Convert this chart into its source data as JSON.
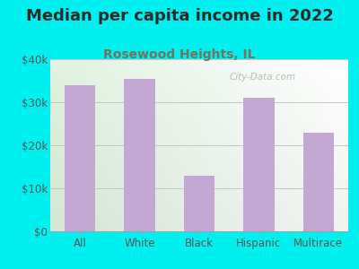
{
  "title": "Median per capita income in 2022",
  "subtitle": "Rosewood Heights, IL",
  "categories": [
    "All",
    "White",
    "Black",
    "Hispanic",
    "Multirace"
  ],
  "values": [
    34000,
    35500,
    13000,
    31000,
    23000
  ],
  "bar_color": "#c4a8d4",
  "title_color": "#2a2a2a",
  "subtitle_color": "#7a7060",
  "background_outer": "#00f0f0",
  "grid_color": "#c0c8c0",
  "watermark_text": "City-Data.com",
  "ylim": [
    0,
    40000
  ],
  "yticks": [
    0,
    10000,
    20000,
    30000,
    40000
  ],
  "ytick_labels": [
    "$0",
    "$10k",
    "$20k",
    "$30k",
    "$40k"
  ],
  "title_fontsize": 13,
  "subtitle_fontsize": 10,
  "tick_fontsize": 8.5
}
